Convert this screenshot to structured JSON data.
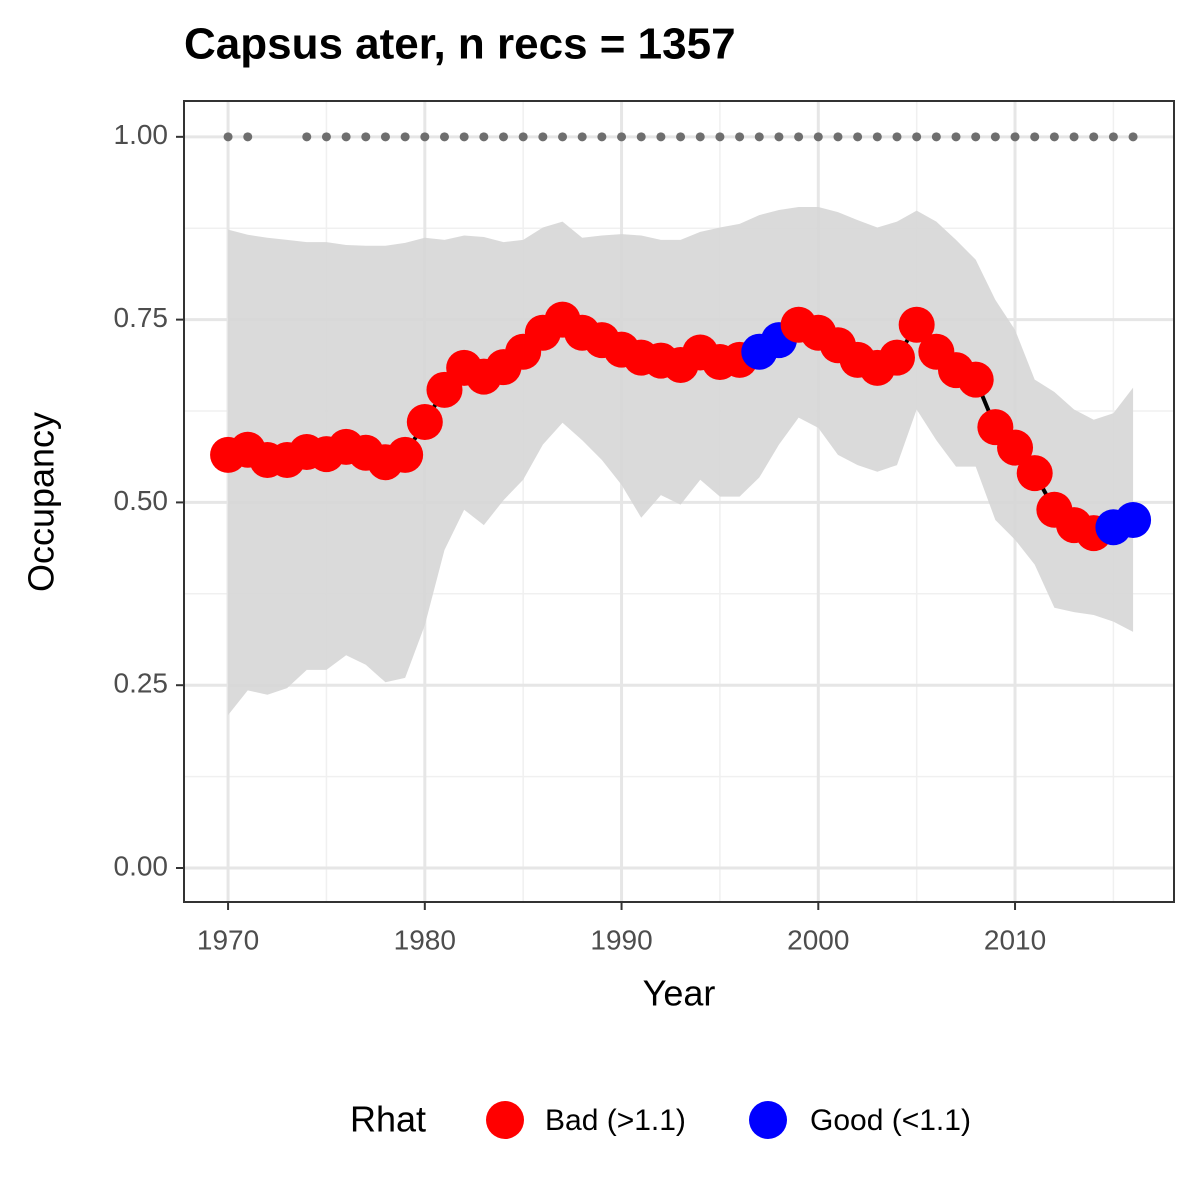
{
  "chart_data": {
    "type": "line",
    "title": "Capsus ater, n recs = 1357",
    "xlabel": "Year",
    "ylabel": "Occupancy",
    "x": [
      1970,
      1971,
      1972,
      1973,
      1974,
      1975,
      1976,
      1977,
      1978,
      1979,
      1980,
      1981,
      1982,
      1983,
      1984,
      1985,
      1986,
      1987,
      1988,
      1989,
      1990,
      1991,
      1992,
      1993,
      1994,
      1995,
      1996,
      1997,
      1998,
      1999,
      2000,
      2001,
      2002,
      2003,
      2004,
      2005,
      2006,
      2007,
      2008,
      2009,
      2010,
      2011,
      2012,
      2013,
      2014,
      2015,
      2016
    ],
    "xlim": [
      1967.76,
      2018.08
    ],
    "ylim": [
      -0.0465,
      1.049
    ],
    "xticks": [
      1970,
      1980,
      1990,
      2000,
      2010
    ],
    "xminor": [
      1975,
      1985,
      1995,
      2005,
      2015
    ],
    "yticks": [
      {
        "value": 0,
        "label": "0.00"
      },
      {
        "value": 0.25,
        "label": "0.25"
      },
      {
        "value": 0.5,
        "label": "0.50"
      },
      {
        "value": 0.75,
        "label": "0.75"
      },
      {
        "value": 1,
        "label": "1.00"
      }
    ],
    "yminor": [
      0.125,
      0.375,
      0.625,
      0.875
    ],
    "grid": true,
    "line_color": "#000000",
    "series": [
      {
        "name": "Bad (>1.1)",
        "color": "#ff0000",
        "values": [
          0.565,
          0.572,
          0.558,
          0.558,
          0.569,
          0.566,
          0.576,
          0.568,
          0.555,
          0.565,
          0.61,
          0.654,
          0.684,
          0.672,
          0.685,
          0.706,
          0.732,
          0.75,
          0.732,
          0.722,
          0.709,
          0.698,
          0.694,
          0.688,
          0.705,
          0.692,
          0.695,
          null,
          null,
          0.743,
          0.732,
          0.715,
          0.695,
          0.684,
          0.698,
          0.743,
          0.706,
          0.681,
          0.668,
          0.603,
          0.575,
          0.54,
          0.49,
          0.469,
          0.458,
          null,
          null
        ]
      },
      {
        "name": "Good (<1.1)",
        "color": "#0000ff",
        "values": [
          null,
          null,
          null,
          null,
          null,
          null,
          null,
          null,
          null,
          null,
          null,
          null,
          null,
          null,
          null,
          null,
          null,
          null,
          null,
          null,
          null,
          null,
          null,
          null,
          null,
          null,
          null,
          0.706,
          0.722,
          null,
          null,
          null,
          null,
          null,
          null,
          null,
          null,
          null,
          null,
          null,
          null,
          null,
          null,
          null,
          null,
          0.466,
          0.476
        ]
      }
    ],
    "band": {
      "color": "#d6d6d6",
      "lower": [
        0.209,
        0.243,
        0.237,
        0.246,
        0.271,
        0.271,
        0.291,
        0.278,
        0.254,
        0.26,
        0.332,
        0.435,
        0.49,
        0.469,
        0.503,
        0.531,
        0.579,
        0.609,
        0.585,
        0.558,
        0.524,
        0.479,
        0.51,
        0.497,
        0.531,
        0.508,
        0.508,
        0.534,
        0.579,
        0.616,
        0.602,
        0.565,
        0.551,
        0.542,
        0.551,
        0.627,
        0.585,
        0.549,
        0.549,
        0.476,
        0.449,
        0.415,
        0.356,
        0.35,
        0.346,
        0.337,
        0.323
      ],
      "upper": [
        0.873,
        0.866,
        0.862,
        0.859,
        0.856,
        0.856,
        0.852,
        0.851,
        0.851,
        0.855,
        0.862,
        0.859,
        0.865,
        0.863,
        0.856,
        0.859,
        0.876,
        0.884,
        0.862,
        0.865,
        0.867,
        0.865,
        0.859,
        0.859,
        0.87,
        0.876,
        0.881,
        0.893,
        0.9,
        0.904,
        0.904,
        0.897,
        0.886,
        0.876,
        0.884,
        0.899,
        0.884,
        0.859,
        0.832,
        0.777,
        0.736,
        0.668,
        0.651,
        0.627,
        0.613,
        0.622,
        0.657
      ]
    },
    "records": {
      "color": "#6e6e6e",
      "values": [
        1,
        1,
        null,
        null,
        1,
        1,
        1,
        1,
        1,
        1,
        1,
        1,
        1,
        1,
        1,
        1,
        1,
        1,
        1,
        1,
        1,
        1,
        1,
        1,
        1,
        1,
        1,
        1,
        1,
        1,
        1,
        1,
        1,
        1,
        1,
        1,
        1,
        1,
        1,
        1,
        1,
        1,
        1,
        1,
        1,
        1,
        1
      ]
    },
    "legend_title": "Rhat",
    "legend_position": "bottom"
  }
}
